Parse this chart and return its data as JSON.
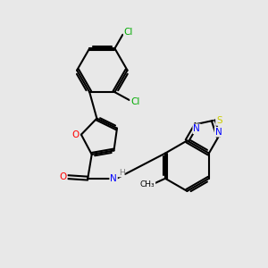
{
  "background_color": "#e8e8e8",
  "bond_color": "#000000",
  "atom_colors": {
    "O": "#ff0000",
    "N": "#0000ff",
    "S": "#cccc00",
    "Cl": "#00aa00",
    "C": "#000000",
    "H": "#808080"
  }
}
